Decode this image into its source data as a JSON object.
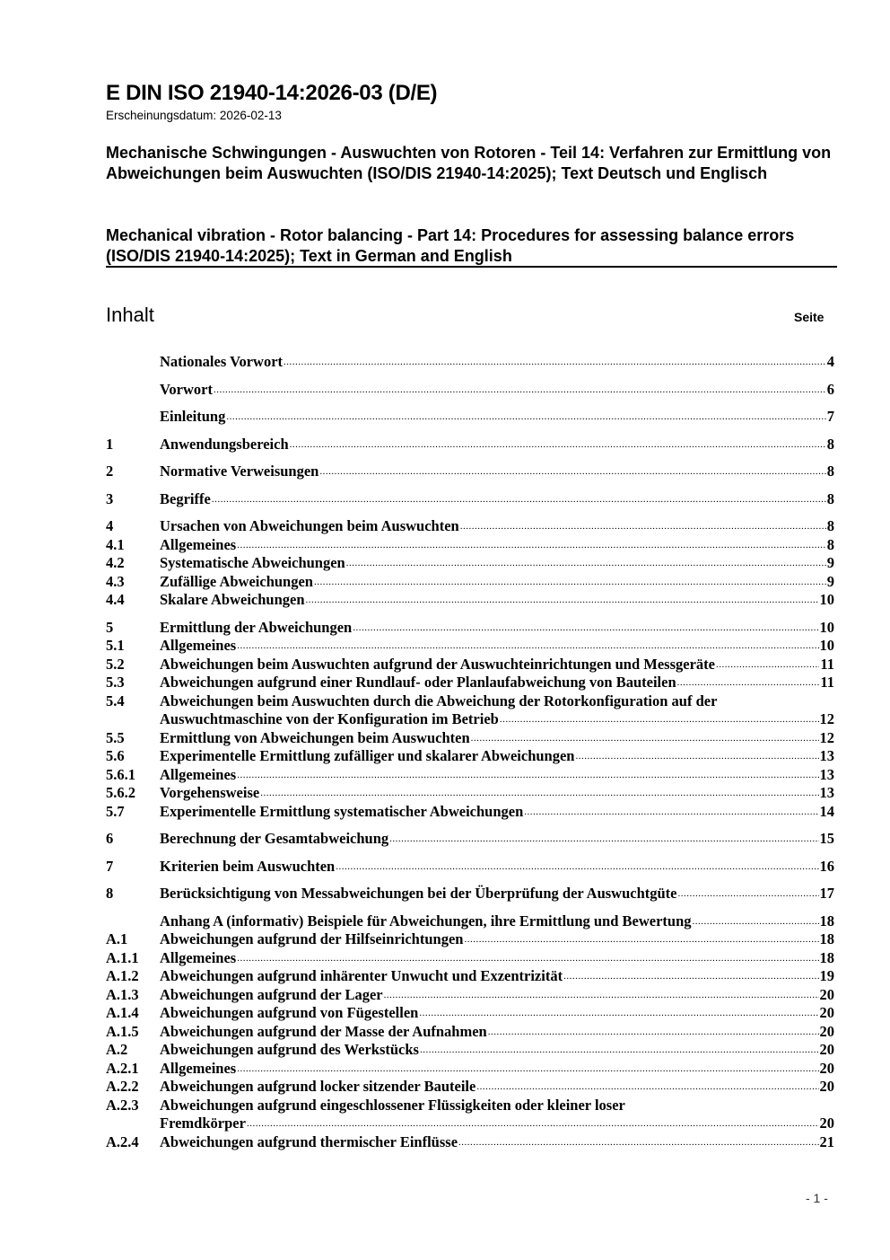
{
  "header": {
    "doc_id": "E DIN ISO 21940-14:2026-03 (D/E)",
    "date": "Erscheinungsdatum: 2026-02-13",
    "title_de": "Mechanische Schwingungen - Auswuchten von Rotoren - Teil 14: Verfahren zur Ermittlung von Abweichungen beim Auswuchten (ISO/DIS 21940-14:2025); Text Deutsch und Englisch",
    "title_en": "Mechanical vibration - Rotor balancing - Part 14: Procedures for assessing balance errors (ISO/DIS 21940-14:2025); Text in German and English"
  },
  "toc": {
    "heading": "Inhalt",
    "page_label": "Seite",
    "entries": [
      {
        "num": "",
        "title": "Nationales Vorwort",
        "page": "4",
        "gap": false
      },
      {
        "num": "",
        "title": "Vorwort",
        "page": "6",
        "gap": true
      },
      {
        "num": "",
        "title": "Einleitung",
        "page": "7",
        "gap": true
      },
      {
        "num": "1",
        "title": "Anwendungsbereich",
        "page": "8",
        "gap": true
      },
      {
        "num": "2",
        "title": "Normative Verweisungen",
        "page": "8",
        "gap": true
      },
      {
        "num": "3",
        "title": "Begriffe",
        "page": "8",
        "gap": true
      },
      {
        "num": "4",
        "title": "Ursachen von Abweichungen beim Auswuchten",
        "page": "8",
        "gap": true
      },
      {
        "num": "4.1",
        "title": "Allgemeines",
        "page": "8"
      },
      {
        "num": "4.2",
        "title": "Systematische Abweichungen",
        "page": "9"
      },
      {
        "num": "4.3",
        "title": "Zufällige Abweichungen",
        "page": "9"
      },
      {
        "num": "4.4",
        "title": "Skalare Abweichungen",
        "page": "10"
      },
      {
        "num": "5",
        "title": "Ermittlung der Abweichungen",
        "page": "10",
        "gap": true
      },
      {
        "num": "5.1",
        "title": "Allgemeines",
        "page": "10"
      },
      {
        "num": "5.2",
        "title": "Abweichungen beim Auswuchten aufgrund der Auswuchteinrichtungen und Messgeräte",
        "page": "11"
      },
      {
        "num": "5.3",
        "title": "Abweichungen aufgrund einer Rundlauf- oder Planlaufabweichung von Bauteilen",
        "page": "11"
      },
      {
        "num": "5.4",
        "title": "Abweichungen beim Auswuchten durch die Abweichung der Rotorkonfiguration auf der",
        "title2": "Auswuchtmaschine von der Konfiguration im Betrieb",
        "page": "12"
      },
      {
        "num": "5.5",
        "title": "Ermittlung von Abweichungen beim Auswuchten",
        "page": "12"
      },
      {
        "num": "5.6",
        "title": "Experimentelle Ermittlung zufälliger und skalarer Abweichungen",
        "page": "13"
      },
      {
        "num": "5.6.1",
        "title": "Allgemeines",
        "page": "13"
      },
      {
        "num": "5.6.2",
        "title": "Vorgehensweise",
        "page": "13"
      },
      {
        "num": "5.7",
        "title": "Experimentelle Ermittlung systematischer Abweichungen",
        "page": "14"
      },
      {
        "num": "6",
        "title": "Berechnung der Gesamtabweichung",
        "page": "15",
        "gap": true
      },
      {
        "num": "7",
        "title": "Kriterien beim Auswuchten",
        "page": "16",
        "gap": true
      },
      {
        "num": "8",
        "title": "Berücksichtigung von Messabweichungen bei der Überprüfung der Auswuchtgüte",
        "page": "17",
        "gap": true
      },
      {
        "num": "",
        "title": "Anhang A (informativ)  Beispiele für Abweichungen, ihre Ermittlung und Bewertung",
        "page": "18",
        "gap": true
      },
      {
        "num": "A.1",
        "title": "Abweichungen aufgrund der Hilfseinrichtungen",
        "page": "18"
      },
      {
        "num": "A.1.1",
        "title": "Allgemeines",
        "page": "18"
      },
      {
        "num": "A.1.2",
        "title": "Abweichungen aufgrund inhärenter Unwucht und Exzentrizität",
        "page": "19"
      },
      {
        "num": "A.1.3",
        "title": "Abweichungen aufgrund der Lager",
        "page": "20"
      },
      {
        "num": "A.1.4",
        "title": "Abweichungen aufgrund von Fügestellen",
        "page": "20"
      },
      {
        "num": "A.1.5",
        "title": "Abweichungen aufgrund der Masse der Aufnahmen",
        "page": "20"
      },
      {
        "num": "A.2",
        "title": "Abweichungen aufgrund des Werkstücks",
        "page": "20"
      },
      {
        "num": "A.2.1",
        "title": "Allgemeines",
        "page": "20"
      },
      {
        "num": "A.2.2",
        "title": "Abweichungen aufgrund locker sitzender Bauteile",
        "page": "20"
      },
      {
        "num": "A.2.3",
        "title": "Abweichungen aufgrund eingeschlossener Flüssigkeiten oder kleiner loser",
        "title2": "Fremdkörper",
        "page": "20"
      },
      {
        "num": "A.2.4",
        "title": "Abweichungen aufgrund thermischer Einflüsse",
        "page": "21"
      }
    ]
  },
  "footer": {
    "page_number": "- 1 -"
  }
}
